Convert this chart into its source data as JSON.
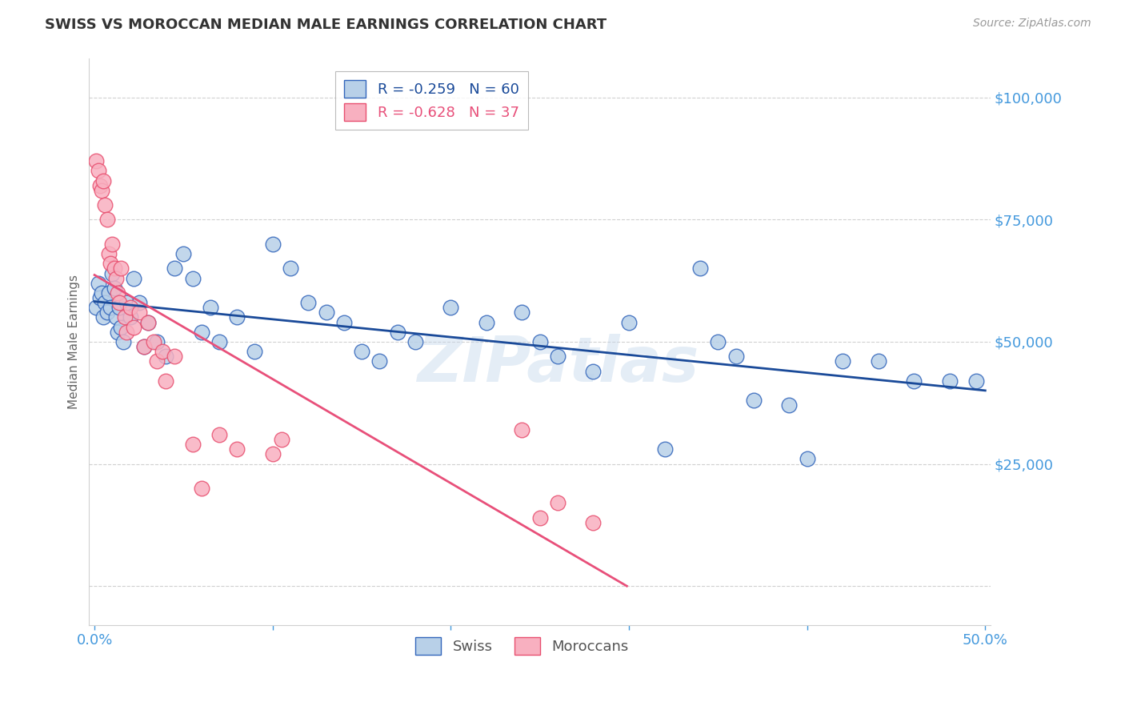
{
  "title": "SWISS VS MOROCCAN MEDIAN MALE EARNINGS CORRELATION CHART",
  "source": "Source: ZipAtlas.com",
  "ylabel": "Median Male Earnings",
  "xlim": [
    -0.003,
    0.503
  ],
  "ylim": [
    -8000,
    108000
  ],
  "yticks": [
    0,
    25000,
    50000,
    75000,
    100000
  ],
  "ytick_labels": [
    "",
    "$25,000",
    "$50,000",
    "$75,000",
    "$100,000"
  ],
  "xticks": [
    0.0,
    0.1,
    0.2,
    0.3,
    0.4,
    0.5
  ],
  "xtick_labels": [
    "0.0%",
    "",
    "",
    "",
    "",
    "50.0%"
  ],
  "swiss_r": -0.259,
  "swiss_n": 60,
  "moroccan_r": -0.628,
  "moroccan_n": 37,
  "swiss_color": "#b8d0e8",
  "moroccan_color": "#f8b0c0",
  "swiss_edge_color": "#3366bb",
  "moroccan_edge_color": "#e85070",
  "swiss_line_color": "#1a4a99",
  "moroccan_line_color": "#e8507a",
  "grid_color": "#d0d0d0",
  "title_color": "#333333",
  "source_color": "#999999",
  "axis_label_color": "#666666",
  "tick_color": "#4499dd",
  "background": "#ffffff",
  "watermark": "ZIPatlas",
  "swiss_x": [
    0.001,
    0.002,
    0.003,
    0.004,
    0.005,
    0.006,
    0.007,
    0.008,
    0.009,
    0.01,
    0.011,
    0.012,
    0.013,
    0.014,
    0.015,
    0.016,
    0.018,
    0.02,
    0.022,
    0.025,
    0.028,
    0.03,
    0.035,
    0.04,
    0.045,
    0.05,
    0.055,
    0.06,
    0.065,
    0.07,
    0.08,
    0.09,
    0.1,
    0.11,
    0.12,
    0.13,
    0.14,
    0.15,
    0.16,
    0.17,
    0.18,
    0.2,
    0.22,
    0.24,
    0.25,
    0.26,
    0.28,
    0.3,
    0.32,
    0.34,
    0.35,
    0.36,
    0.37,
    0.39,
    0.4,
    0.42,
    0.44,
    0.46,
    0.48,
    0.495
  ],
  "swiss_y": [
    57000,
    62000,
    59000,
    60000,
    55000,
    58000,
    56000,
    60000,
    57000,
    64000,
    61000,
    55000,
    52000,
    57000,
    53000,
    50000,
    58000,
    55000,
    63000,
    58000,
    49000,
    54000,
    50000,
    47000,
    65000,
    68000,
    63000,
    52000,
    57000,
    50000,
    55000,
    48000,
    70000,
    65000,
    58000,
    56000,
    54000,
    48000,
    46000,
    52000,
    50000,
    57000,
    54000,
    56000,
    50000,
    47000,
    44000,
    54000,
    28000,
    65000,
    50000,
    47000,
    38000,
    37000,
    26000,
    46000,
    46000,
    42000,
    42000,
    42000
  ],
  "moroccan_x": [
    0.001,
    0.002,
    0.003,
    0.004,
    0.005,
    0.006,
    0.007,
    0.008,
    0.009,
    0.01,
    0.011,
    0.012,
    0.013,
    0.014,
    0.015,
    0.017,
    0.018,
    0.02,
    0.022,
    0.025,
    0.028,
    0.03,
    0.033,
    0.035,
    0.038,
    0.04,
    0.045,
    0.055,
    0.06,
    0.07,
    0.08,
    0.1,
    0.105,
    0.24,
    0.25,
    0.26,
    0.28
  ],
  "moroccan_y": [
    87000,
    85000,
    82000,
    81000,
    83000,
    78000,
    75000,
    68000,
    66000,
    70000,
    65000,
    63000,
    60000,
    58000,
    65000,
    55000,
    52000,
    57000,
    53000,
    56000,
    49000,
    54000,
    50000,
    46000,
    48000,
    42000,
    47000,
    29000,
    20000,
    31000,
    28000,
    27000,
    30000,
    32000,
    14000,
    17000,
    13000
  ]
}
